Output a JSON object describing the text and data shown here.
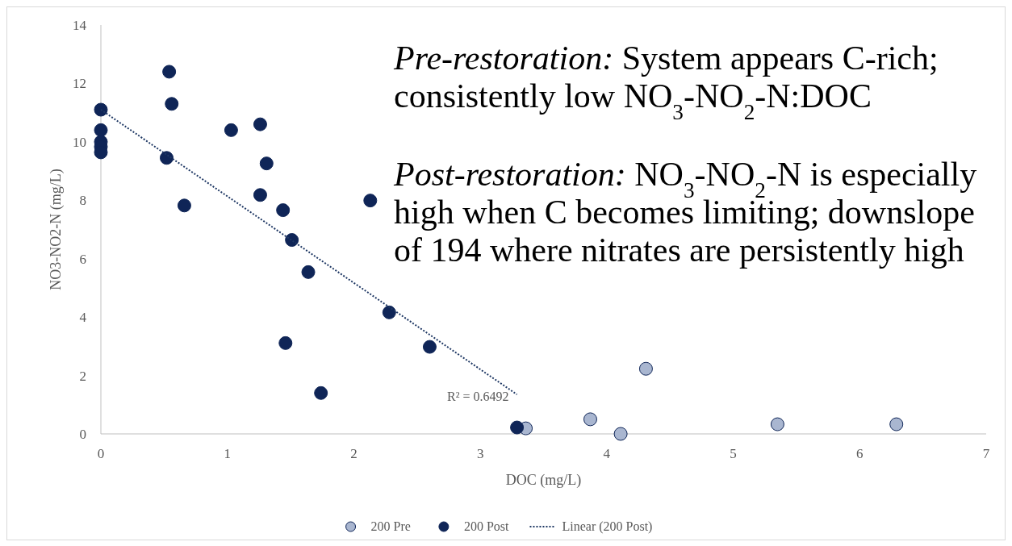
{
  "chart_data": {
    "type": "scatter",
    "xlabel": "DOC (mg/L)",
    "ylabel": "NO3-NO2-N  (mg/L)",
    "xlim": [
      0,
      7
    ],
    "xticks": [
      0,
      1,
      2,
      3,
      4,
      5,
      6,
      7
    ],
    "ylim": [
      0,
      14
    ],
    "yticks": [
      0,
      2,
      4,
      6,
      8,
      10,
      12,
      14
    ],
    "grid": false,
    "legend": "bottom",
    "series": [
      {
        "name": "200 Pre",
        "marker": "circle",
        "color": "#a9b6d0",
        "x": [
          3.36,
          3.87,
          4.11,
          4.31,
          5.35,
          6.29
        ],
        "values": [
          0.19,
          0.5,
          0,
          2.23,
          0.33,
          0.33
        ]
      },
      {
        "name": "200 Post",
        "marker": "circle",
        "color": "#0f2557",
        "x": [
          0,
          0,
          0,
          0,
          0,
          0.54,
          0.56,
          0.52,
          0.66,
          1.03,
          1.26,
          1.31,
          1.26,
          1.44,
          1.51,
          1.64,
          1.46,
          1.74,
          2.13,
          2.28,
          2.6,
          3.29
        ],
        "values": [
          11.1,
          10.4,
          10.0,
          9.83,
          9.64,
          12.4,
          11.3,
          9.45,
          7.82,
          10.4,
          10.6,
          9.26,
          8.18,
          7.66,
          6.64,
          5.54,
          3.11,
          1.4,
          7.99,
          4.16,
          2.98,
          0.22
        ]
      },
      {
        "name": "Linear (200 Post)",
        "type": "line",
        "marker": "none",
        "color": "#1f3864",
        "line_style": "dotted",
        "x": [
          0,
          3.29
        ],
        "values": [
          11.1,
          1.35
        ]
      }
    ],
    "annotations": [
      "Pre-restoration:",
      "System appears C-rich; consistently low NO$_{3}$-NO$_{2}$-N:DOC",
      "Post-restoration:",
      "NO$_{3}$-NO$_{2}$-N is especially high when C becomes limiting; downslope of 194 where nitrates are persistently high",
      {
        "text": "R² = 0.6492",
        "x": 3.29,
        "y": 1.35
      }
    ]
  }
}
